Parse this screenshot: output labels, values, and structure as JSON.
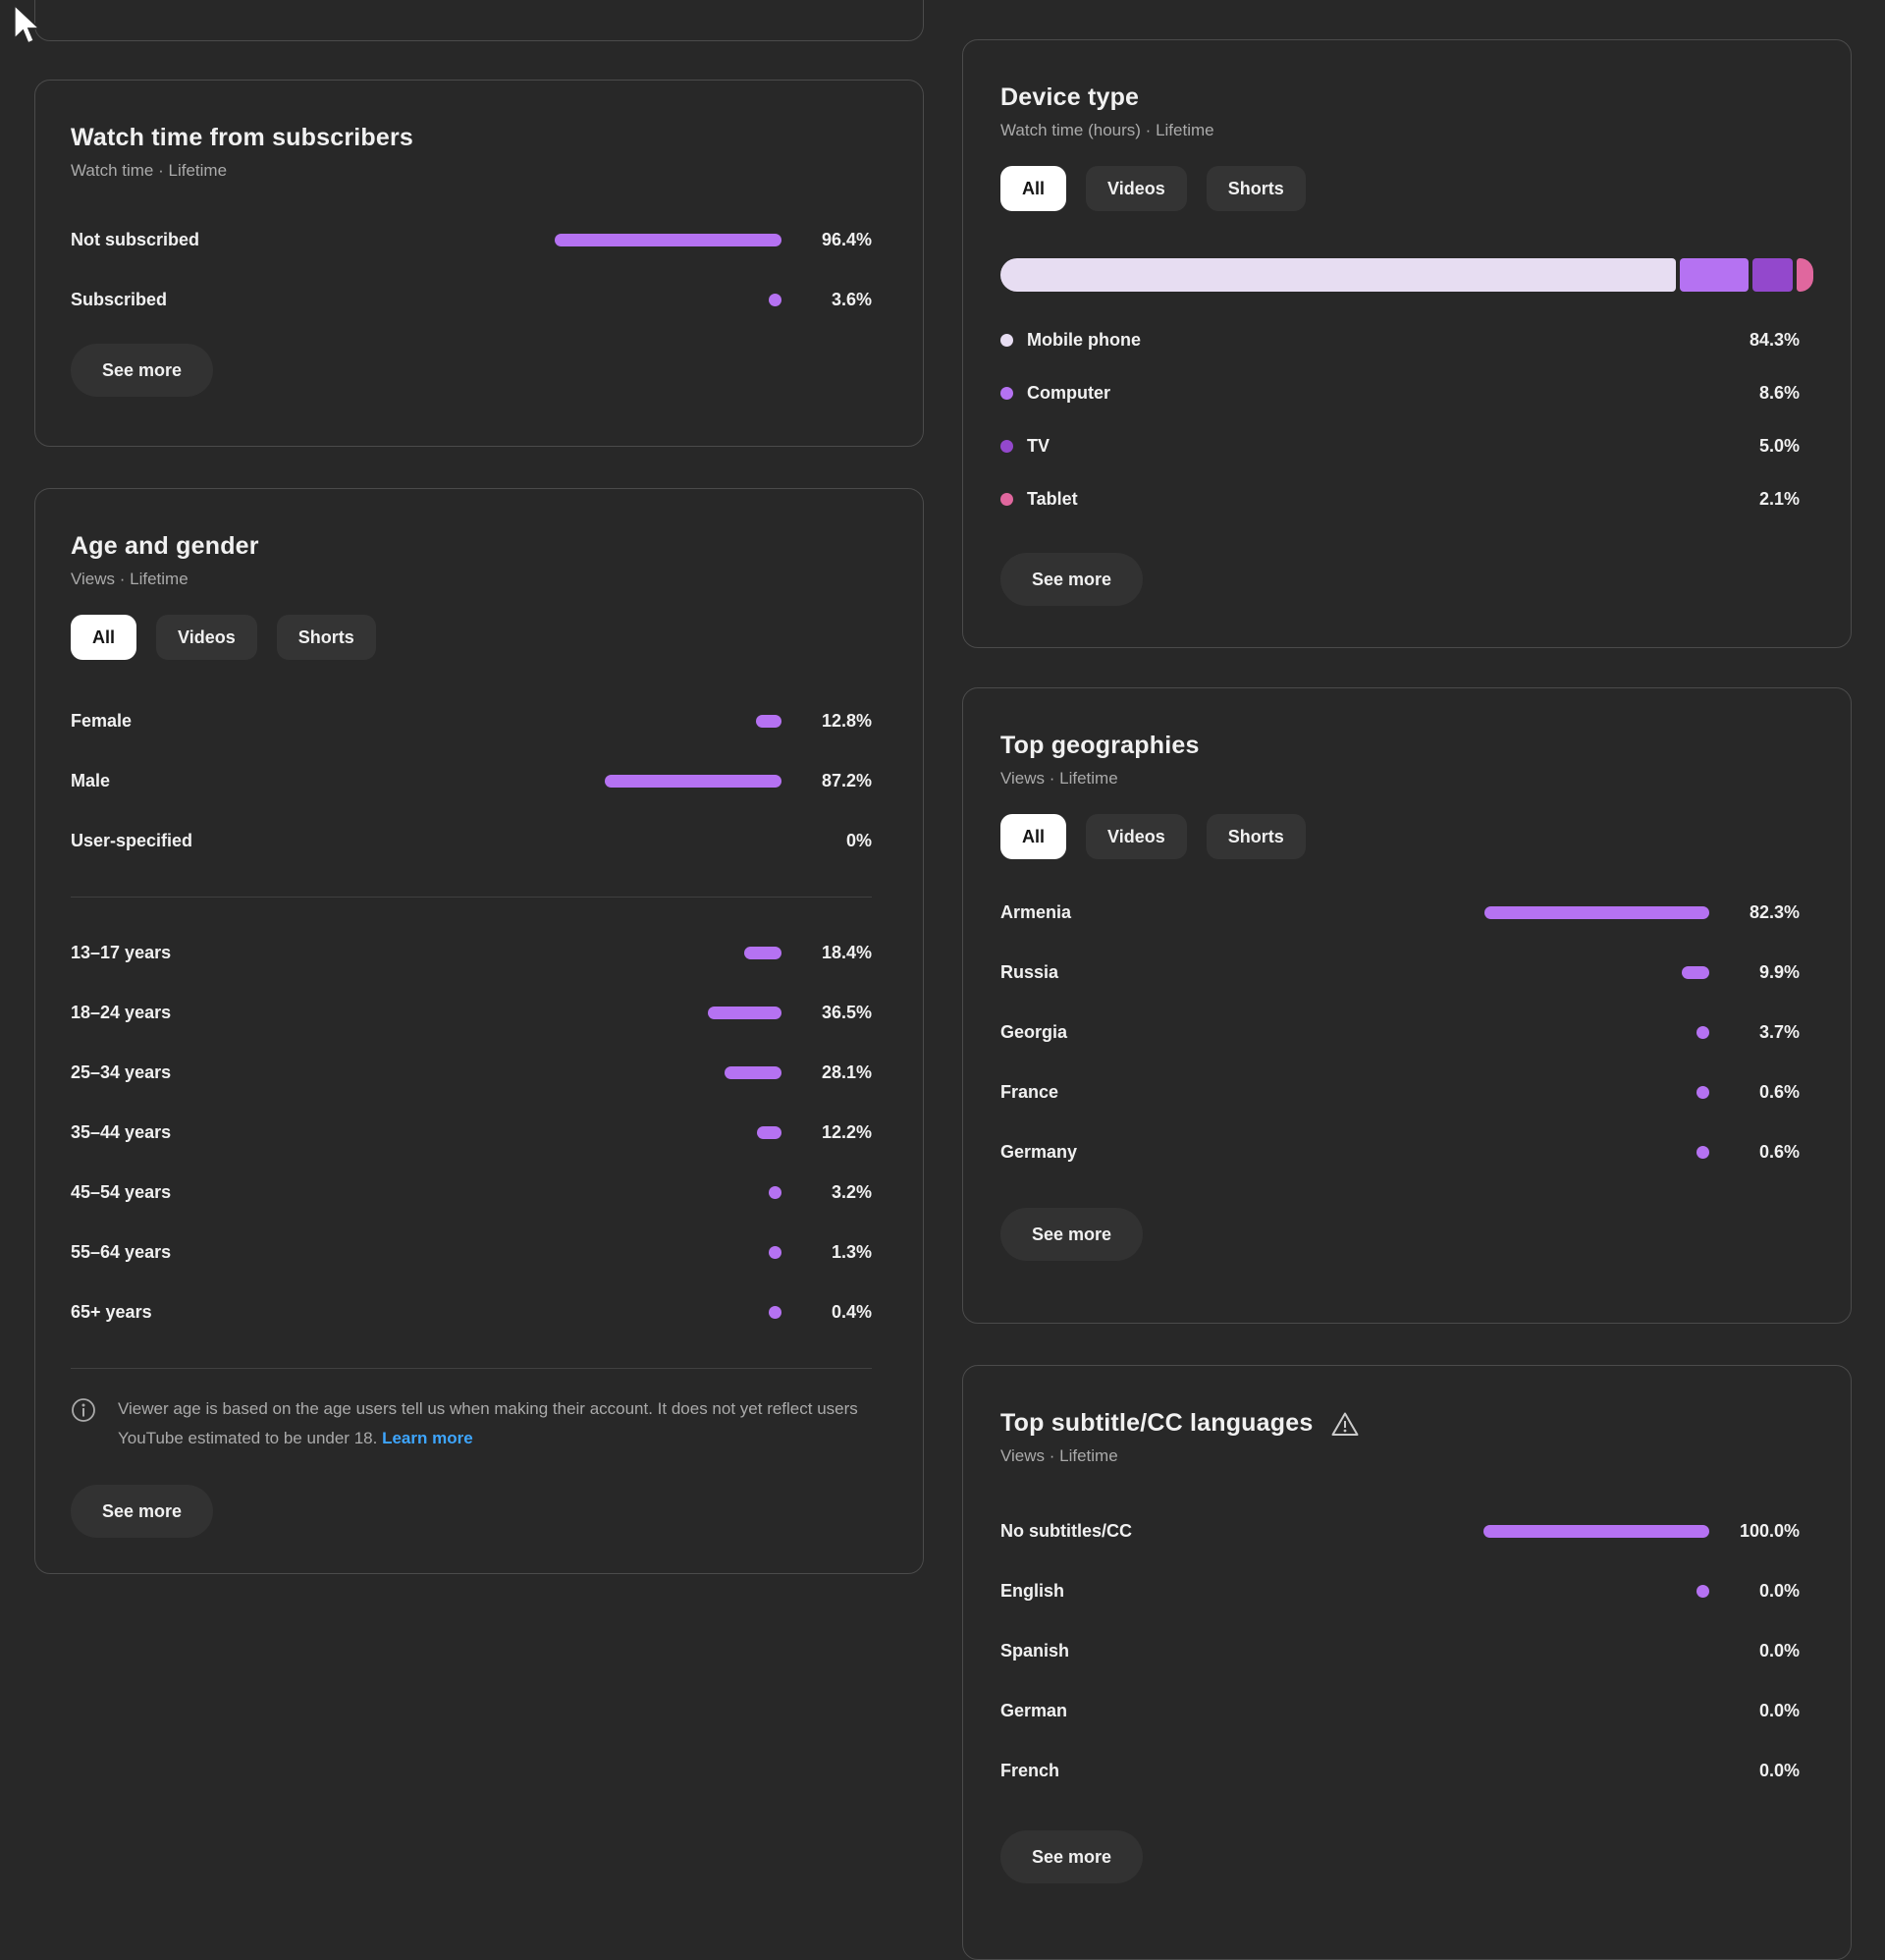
{
  "colors": {
    "background": "#282828",
    "card_border": "#4b4b4b",
    "bar_purple": "#b572f2",
    "segment_light": "#e7ddf2",
    "segment_purple": "#b572f2",
    "segment_dark_purple": "#9348cc",
    "segment_pink": "#e0679e",
    "link_blue": "#3ea6ff",
    "subtitle_gray": "#aaaaaa"
  },
  "cards": {
    "watch_time_subscribers": {
      "title": "Watch time from subscribers",
      "subtitle": "Watch time · Lifetime",
      "see_more_label": "See more",
      "rows": [
        {
          "label": "Not subscribed",
          "value": "96.4%",
          "pct": 96.4
        },
        {
          "label": "Subscribed",
          "value": "3.6%",
          "pct": 3.6
        }
      ]
    },
    "age_gender": {
      "title": "Age and gender",
      "subtitle": "Views · Lifetime",
      "tabs": [
        {
          "label": "All",
          "active": true
        },
        {
          "label": "Videos",
          "active": false
        },
        {
          "label": "Shorts",
          "active": false
        }
      ],
      "gender_rows": [
        {
          "label": "Female",
          "value": "12.8%",
          "pct": 12.8
        },
        {
          "label": "Male",
          "value": "87.2%",
          "pct": 87.2
        },
        {
          "label": "User-specified",
          "value": "0%",
          "pct": 0
        }
      ],
      "age_rows": [
        {
          "label": "13–17 years",
          "value": "18.4%",
          "pct": 18.4
        },
        {
          "label": "18–24 years",
          "value": "36.5%",
          "pct": 36.5
        },
        {
          "label": "25–34 years",
          "value": "28.1%",
          "pct": 28.1
        },
        {
          "label": "35–44 years",
          "value": "12.2%",
          "pct": 12.2
        },
        {
          "label": "45–54 years",
          "value": "3.2%",
          "pct": 3.2
        },
        {
          "label": "55–64 years",
          "value": "1.3%",
          "pct": 1.3
        },
        {
          "label": "65+ years",
          "value": "0.4%",
          "pct": 0.4
        }
      ],
      "note_text": "Viewer age is based on the age users tell us when making their account. It does not yet reflect users YouTube estimated to be under 18.",
      "note_link": "Learn more",
      "see_more_label": "See more"
    },
    "device_type": {
      "title": "Device type",
      "subtitle": "Watch time (hours) · Lifetime",
      "tabs": [
        {
          "label": "All",
          "active": true
        },
        {
          "label": "Videos",
          "active": false
        },
        {
          "label": "Shorts",
          "active": false
        }
      ],
      "segments": [
        {
          "label": "Mobile phone",
          "pct": 84.3,
          "color": "#e7ddf2"
        },
        {
          "label": "Computer",
          "pct": 8.6,
          "color": "#b572f2"
        },
        {
          "label": "TV",
          "pct": 5.0,
          "color": "#9348cc"
        },
        {
          "label": "Tablet",
          "pct": 2.1,
          "color": "#e0679e"
        }
      ],
      "rows": [
        {
          "label": "Mobile phone",
          "value": "84.3%",
          "color": "#e7ddf2"
        },
        {
          "label": "Computer",
          "value": "8.6%",
          "color": "#b572f2"
        },
        {
          "label": "TV",
          "value": "5.0%",
          "color": "#9348cc"
        },
        {
          "label": "Tablet",
          "value": "2.1%",
          "color": "#e0679e"
        }
      ],
      "see_more_label": "See more"
    },
    "top_geographies": {
      "title": "Top geographies",
      "subtitle": "Views · Lifetime",
      "tabs": [
        {
          "label": "All",
          "active": true
        },
        {
          "label": "Videos",
          "active": false
        },
        {
          "label": "Shorts",
          "active": false
        }
      ],
      "rows": [
        {
          "label": "Armenia",
          "value": "82.3%",
          "pct": 82.3
        },
        {
          "label": "Russia",
          "value": "9.9%",
          "pct": 9.9
        },
        {
          "label": "Georgia",
          "value": "3.7%",
          "pct": 3.7
        },
        {
          "label": "France",
          "value": "0.6%",
          "pct": 0.6
        },
        {
          "label": "Germany",
          "value": "0.6%",
          "pct": 0.6
        }
      ],
      "see_more_label": "See more"
    },
    "top_subtitle_languages": {
      "title": "Top subtitle/CC languages",
      "subtitle": "Views · Lifetime",
      "rows": [
        {
          "label": "No subtitles/CC",
          "value": "100.0%",
          "pct": 100.0
        },
        {
          "label": "English",
          "value": "0.0%",
          "pct": 0.0,
          "marker": true
        },
        {
          "label": "Spanish",
          "value": "0.0%",
          "pct": 0.0
        },
        {
          "label": "German",
          "value": "0.0%",
          "pct": 0.0
        },
        {
          "label": "French",
          "value": "0.0%",
          "pct": 0.0
        }
      ],
      "see_more_label": "See more"
    }
  }
}
